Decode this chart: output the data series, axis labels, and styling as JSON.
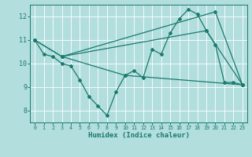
{
  "xlabel": "Humidex (Indice chaleur)",
  "ylabel": "",
  "bg_color": "#b2dede",
  "grid_color": "#ffffff",
  "line_color": "#1a7a6e",
  "marker": "D",
  "markersize": 2.0,
  "linewidth": 0.9,
  "xlim": [
    -0.5,
    23.5
  ],
  "ylim": [
    7.5,
    12.5
  ],
  "xticks": [
    0,
    1,
    2,
    3,
    4,
    5,
    6,
    7,
    8,
    9,
    10,
    11,
    12,
    13,
    14,
    15,
    16,
    17,
    18,
    19,
    20,
    21,
    22,
    23
  ],
  "yticks": [
    8,
    9,
    10,
    11,
    12
  ],
  "lines": [
    {
      "x": [
        0,
        1,
        2,
        3,
        4,
        5,
        6,
        7,
        8,
        9,
        10,
        11,
        12,
        13,
        14,
        15,
        16,
        17,
        18,
        19,
        20,
        21,
        22,
        23
      ],
      "y": [
        11.0,
        10.4,
        10.3,
        10.0,
        9.9,
        9.3,
        8.6,
        8.2,
        7.8,
        8.8,
        9.5,
        9.7,
        9.4,
        10.6,
        10.4,
        11.3,
        11.9,
        12.3,
        12.1,
        11.4,
        10.8,
        9.2,
        9.2,
        9.1
      ]
    },
    {
      "x": [
        0,
        3,
        20,
        23
      ],
      "y": [
        11.0,
        10.3,
        12.2,
        9.1
      ]
    },
    {
      "x": [
        0,
        3,
        19,
        23
      ],
      "y": [
        11.0,
        10.3,
        11.4,
        9.1
      ]
    },
    {
      "x": [
        3,
        10,
        23
      ],
      "y": [
        10.3,
        9.5,
        9.1
      ]
    }
  ]
}
